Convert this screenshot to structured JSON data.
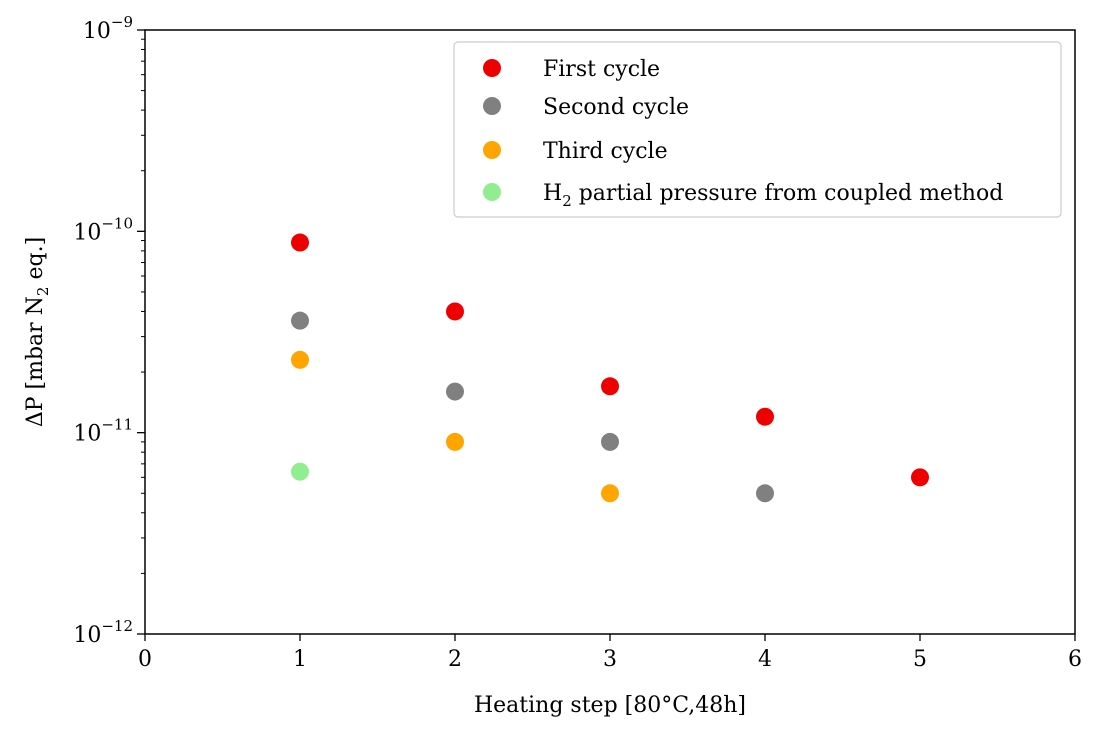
{
  "chart_data": {
    "type": "scatter",
    "title": "",
    "xlabel": "Heating step [80°C,48h]",
    "ylabel": {
      "prefix": "ΔP [mbar N",
      "subscript": "2",
      "suffix": " eq.]"
    },
    "yscale": "log",
    "xlim": [
      0,
      6
    ],
    "ylim": [
      1e-12,
      1e-09
    ],
    "x_ticks": [
      0,
      1,
      2,
      3,
      4,
      5,
      6
    ],
    "x_tick_labels": [
      "0",
      "1",
      "2",
      "3",
      "4",
      "5",
      "6"
    ],
    "y_ticks": [
      {
        "value": 1e-12,
        "base": "10",
        "exponent": "−12"
      },
      {
        "value": 1e-11,
        "base": "10",
        "exponent": "−11"
      },
      {
        "value": 1e-10,
        "base": "10",
        "exponent": "−10"
      },
      {
        "value": 1e-09,
        "base": "10",
        "exponent": "−9"
      }
    ],
    "legend_position": "top-right",
    "series": [
      {
        "name": "First cycle",
        "color": "#ee0000",
        "points": [
          {
            "x": 1,
            "y": 8.8e-11
          },
          {
            "x": 2,
            "y": 4e-11
          },
          {
            "x": 3,
            "y": 1.7e-11
          },
          {
            "x": 4,
            "y": 1.2e-11
          },
          {
            "x": 5,
            "y": 6e-12
          }
        ]
      },
      {
        "name": "Second cycle",
        "color": "#808080",
        "points": [
          {
            "x": 1,
            "y": 3.6e-11
          },
          {
            "x": 2,
            "y": 1.6e-11
          },
          {
            "x": 3,
            "y": 9e-12
          },
          {
            "x": 4,
            "y": 5e-12
          }
        ]
      },
      {
        "name": "Third cycle",
        "color": "#ffa500",
        "points": [
          {
            "x": 1,
            "y": 2.3e-11
          },
          {
            "x": 2,
            "y": 9e-12
          },
          {
            "x": 3,
            "y": 5e-12
          }
        ]
      },
      {
        "name": "H2 partial pressure from coupled method",
        "legend_parts": {
          "prefix": "H",
          "subscript": "2",
          "suffix": " partial pressure from coupled method"
        },
        "color": "#90ee90",
        "points": [
          {
            "x": 1,
            "y": 6.4e-12
          }
        ]
      }
    ]
  }
}
